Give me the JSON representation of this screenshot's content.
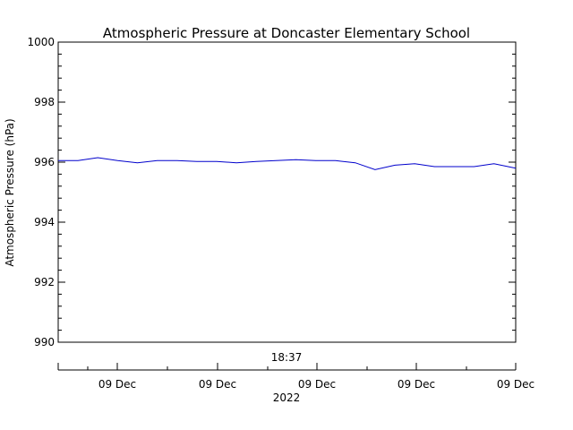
{
  "chart_data": {
    "type": "line",
    "title": "Atmospheric Pressure at Doncaster Elementary School",
    "ylabel": "Atmospheric Pressure (hPa)",
    "ylim": [
      990,
      1000
    ],
    "y_ticks": [
      990,
      992,
      994,
      996,
      998,
      1000
    ],
    "y_tick_labels": [
      "990",
      "992",
      "994",
      "996",
      "998",
      "1000"
    ],
    "x_range_hours": [
      0,
      23.1
    ],
    "time_label": "18:37",
    "x_tick_labels": [
      "09 Dec",
      "09 Dec",
      "09 Dec",
      "09 Dec",
      "09 Dec"
    ],
    "year_label": "2022",
    "series_color": "#0000cc",
    "grid": false,
    "series": [
      {
        "x": [
          0,
          1,
          2,
          3,
          4,
          5,
          6,
          7,
          8,
          9,
          10,
          11,
          12,
          13,
          14,
          15,
          16,
          17,
          18,
          19,
          20,
          21,
          22,
          23.1
        ],
        "values": [
          996.05,
          996.05,
          996.15,
          996.05,
          995.98,
          996.05,
          996.05,
          996.02,
          996.02,
          995.98,
          996.02,
          996.05,
          996.08,
          996.05,
          996.05,
          995.98,
          995.75,
          995.9,
          995.95,
          995.85,
          995.85,
          995.85,
          995.95,
          995.8
        ]
      }
    ]
  }
}
